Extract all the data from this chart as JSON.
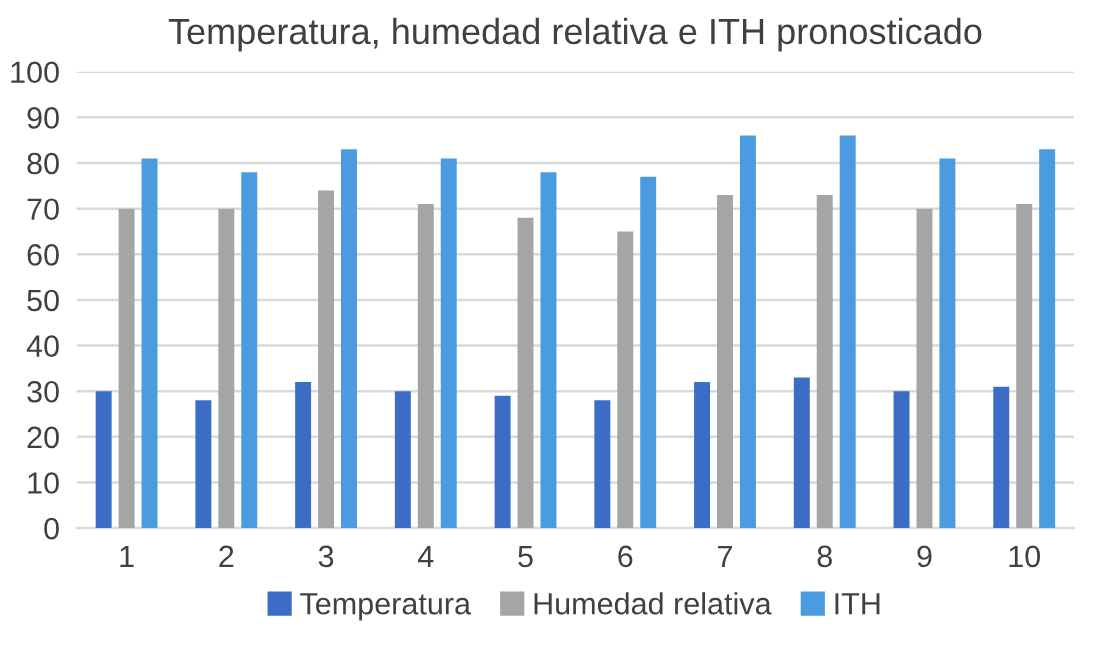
{
  "chart_data": {
    "type": "bar",
    "title": "Temperatura, humedad relativa e ITH pronosticado",
    "categories": [
      "1",
      "2",
      "3",
      "4",
      "5",
      "6",
      "7",
      "8",
      "9",
      "10"
    ],
    "series": [
      {
        "name": "Temperatura",
        "color": "#3b6cc6",
        "values": [
          30,
          28,
          32,
          30,
          29,
          28,
          32,
          33,
          30,
          31
        ]
      },
      {
        "name": "Humedad relativa",
        "color": "#a5a5a5",
        "values": [
          70,
          70,
          74,
          71,
          68,
          65,
          73,
          73,
          70,
          71
        ]
      },
      {
        "name": "ITH",
        "color": "#4a9be0",
        "values": [
          81,
          78,
          83,
          81,
          78,
          77,
          86,
          86,
          81,
          83
        ]
      }
    ],
    "ylim": [
      0,
      100
    ],
    "yticks": [
      0,
      10,
      20,
      30,
      40,
      50,
      60,
      70,
      80,
      90,
      100
    ],
    "grid": "y",
    "legend": "bottom"
  }
}
